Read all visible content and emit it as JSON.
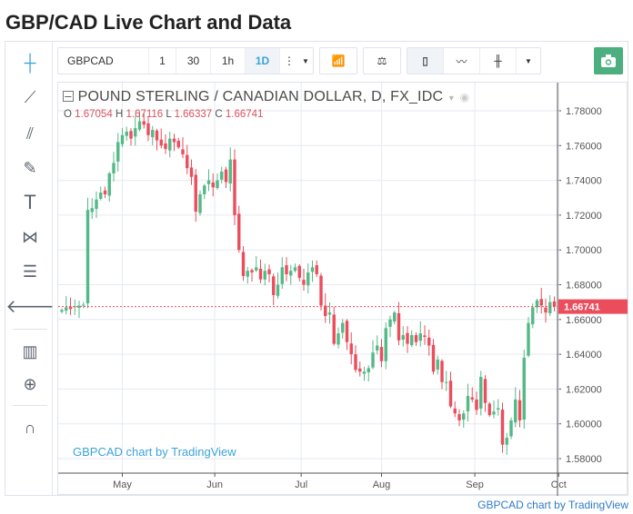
{
  "title": "GBP/CAD Live Chart and Data",
  "toolbar": {
    "symbol": "GBPCAD",
    "intervals": [
      "1",
      "30",
      "1h",
      "1D"
    ],
    "active_interval": "1D"
  },
  "left_tools": [
    "crosshair-icon",
    "trend-line-icon",
    "pitchfork-icon",
    "brush-icon",
    "text-icon",
    "pattern-icon",
    "fib-icon",
    "back-arrow-icon",
    "indicators-icon",
    "zoom-in-icon",
    "magnet-icon"
  ],
  "legend": {
    "name": "POUND STERLING / CANADIAN DOLLAR, D, FX_IDC",
    "o_label": "O",
    "o": "1.67054",
    "h_label": "H",
    "h": "1.67116",
    "l_label": "L",
    "l": "1.66337",
    "c_label": "C",
    "c": "1.66741"
  },
  "watermark": "GBPCAD chart by TradingView",
  "footer": "GBPCAD chart by TradingView",
  "colors": {
    "up": "#53b987",
    "down": "#eb4d5c",
    "accent": "#3ba4d9"
  },
  "chart_data": {
    "type": "candlestick",
    "ylim": [
      1.57,
      1.79
    ],
    "yticks": [
      "1.58000",
      "1.60000",
      "1.62000",
      "1.64000",
      "1.66000",
      "1.68000",
      "1.70000",
      "1.72000",
      "1.74000",
      "1.76000",
      "1.78000"
    ],
    "last_price": "1.66741",
    "months": [
      {
        "label": "May",
        "index": 14
      },
      {
        "label": "Jun",
        "index": 35.4
      },
      {
        "label": "Jul",
        "index": 55.4
      },
      {
        "label": "Aug",
        "index": 74
      },
      {
        "label": "Sep",
        "index": 95.6
      },
      {
        "label": "Oct",
        "index": 115
      }
    ],
    "closes": [
      1.6655,
      1.667,
      1.666,
      1.6675,
      1.668,
      1.6685,
      1.723,
      1.724,
      1.729,
      1.733,
      1.732,
      1.744,
      1.75,
      1.762,
      1.766,
      1.768,
      1.764,
      1.77,
      1.774,
      1.772,
      1.766,
      1.769,
      1.763,
      1.76,
      1.758,
      1.764,
      1.762,
      1.759,
      1.755,
      1.747,
      1.742,
      1.722,
      1.732,
      1.737,
      1.74,
      1.736,
      1.74,
      1.745,
      1.739,
      1.752,
      1.72,
      1.7,
      1.685,
      1.688,
      1.687,
      1.69,
      1.683,
      1.688,
      1.686,
      1.674,
      1.68,
      1.69,
      1.686,
      1.688,
      1.69,
      1.684,
      1.68,
      1.687,
      1.69,
      1.686,
      1.668,
      1.662,
      1.664,
      1.646,
      1.652,
      1.658,
      1.647,
      1.64,
      1.631,
      1.63,
      1.63,
      1.632,
      1.641,
      1.645,
      1.636,
      1.655,
      1.66,
      1.664,
      1.648,
      1.651,
      1.646,
      1.651,
      1.647,
      1.652,
      1.65,
      1.645,
      1.63,
      1.637,
      1.624,
      1.624,
      1.61,
      1.606,
      1.602,
      1.606,
      1.616,
      1.614,
      1.608,
      1.627,
      1.612,
      1.605,
      1.607,
      1.609,
      1.588,
      1.592,
      1.602,
      1.614,
      1.602,
      1.638,
      1.658,
      1.667,
      1.671,
      1.668,
      1.664,
      1.67,
      1.6674
    ]
  }
}
